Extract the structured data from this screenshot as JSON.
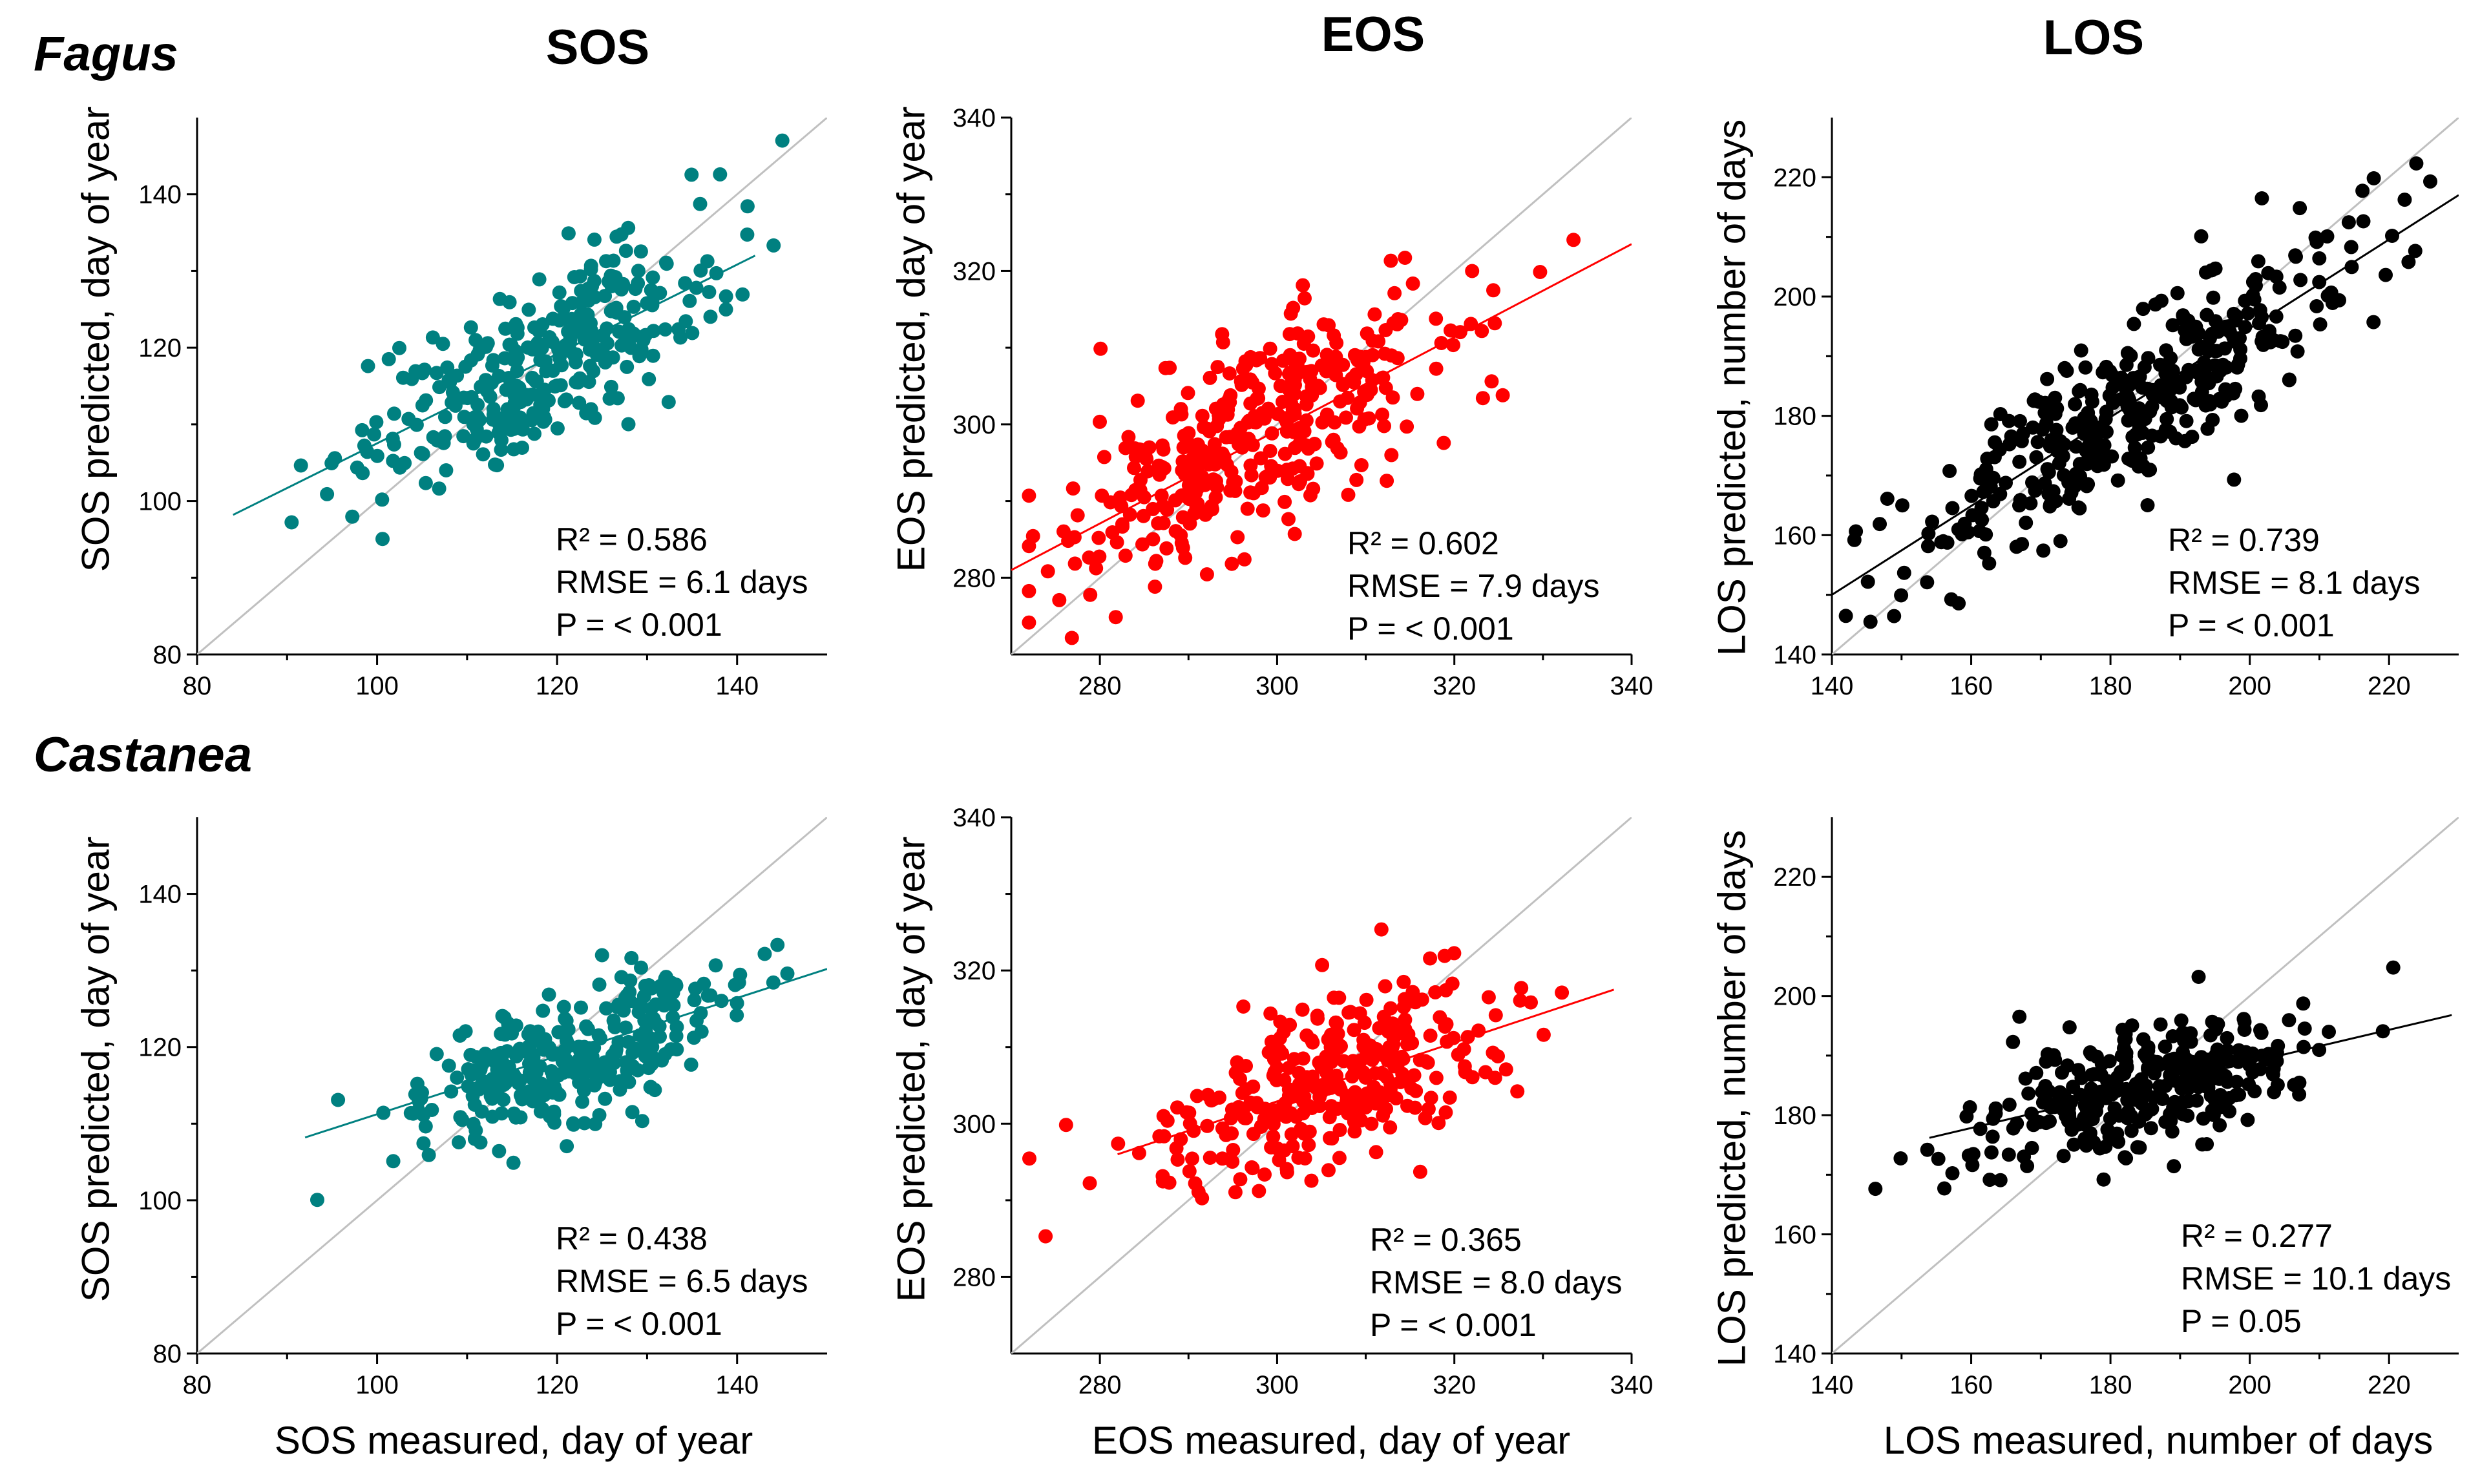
{
  "column_titles": [
    "SOS",
    "EOS",
    "LOS"
  ],
  "row_titles": [
    "Fagus",
    "Castanea"
  ],
  "colors": {
    "SOS": "#008080",
    "EOS": "#ff0000",
    "LOS": "#000000",
    "identity_line": "#c0c0c0"
  },
  "chart_data": [
    {
      "id": "fagus-sos",
      "type": "scatter",
      "species": "Fagus",
      "variable": "SOS",
      "xlabel": "",
      "ylabel": "SOS predicted, day of year",
      "xlim": [
        80,
        150
      ],
      "ylim": [
        80,
        150
      ],
      "xticks": [
        80,
        100,
        120,
        140
      ],
      "yticks": [
        80,
        100,
        120,
        140
      ],
      "identity_line": true,
      "fit_line": {
        "x": [
          84,
          142
        ],
        "y": [
          98.2,
          132
        ]
      },
      "cloud": {
        "count": 320,
        "x_mean": 118,
        "x_sd": 10,
        "slope": 0.58,
        "x_mean_fit": 118,
        "y_mean": 118,
        "resid_sd": 5.5
      },
      "stats": {
        "r2": "R² = 0.586",
        "rmse": "RMSE = 6.1 days",
        "p": "P = < 0.001"
      }
    },
    {
      "id": "fagus-eos",
      "type": "scatter",
      "species": "Fagus",
      "variable": "EOS",
      "xlabel": "",
      "ylabel": "EOS predicted, day of year",
      "xlim": [
        270,
        340
      ],
      "ylim": [
        270,
        340
      ],
      "xticks": [
        280,
        300,
        320,
        340
      ],
      "yticks": [
        280,
        300,
        320,
        340
      ],
      "identity_line": true,
      "fit_line": {
        "x": [
          270,
          340
        ],
        "y": [
          281,
          323.5
        ]
      },
      "cloud": {
        "count": 380,
        "x_mean": 298,
        "x_sd": 11,
        "slope": 0.6,
        "x_mean_fit": 298,
        "y_mean": 299,
        "resid_sd": 6.5
      },
      "stats": {
        "r2": "R² = 0.602",
        "rmse": "RMSE = 7.9 days",
        "p": "P = < 0.001"
      }
    },
    {
      "id": "fagus-los",
      "type": "scatter",
      "species": "Fagus",
      "variable": "LOS",
      "xlabel": "",
      "ylabel": "LOS predicted, number of days",
      "xlim": [
        140,
        230
      ],
      "ylim": [
        140,
        230
      ],
      "xticks": [
        140,
        160,
        180,
        200,
        220
      ],
      "yticks": [
        140,
        160,
        180,
        200,
        220
      ],
      "identity_line": true,
      "fit_line": {
        "x": [
          140,
          230
        ],
        "y": [
          150,
          217
        ]
      },
      "cloud": {
        "count": 380,
        "x_mean": 183,
        "x_sd": 16,
        "slope": 0.74,
        "x_mean_fit": 183,
        "y_mean": 182,
        "resid_sd": 7
      },
      "stats": {
        "r2": "R² = 0.739",
        "rmse": "RMSE = 8.1 days",
        "p": "P = < 0.001"
      }
    },
    {
      "id": "castanea-sos",
      "type": "scatter",
      "species": "Castanea",
      "variable": "SOS",
      "xlabel": "SOS measured, day of year",
      "ylabel": "SOS predicted, day of year",
      "xlim": [
        80,
        150
      ],
      "ylim": [
        80,
        150
      ],
      "xticks": [
        80,
        100,
        120,
        140
      ],
      "yticks": [
        80,
        100,
        120,
        140
      ],
      "identity_line": true,
      "fit_line": {
        "x": [
          92,
          150
        ],
        "y": [
          108.2,
          130.2
        ]
      },
      "cloud": {
        "count": 300,
        "x_mean": 122,
        "x_sd": 9,
        "slope": 0.38,
        "x_mean_fit": 122,
        "y_mean": 119.4,
        "resid_sd": 4.5
      },
      "stats": {
        "r2": "R² = 0.438",
        "rmse": "RMSE = 6.5 days",
        "p": "P = < 0.001"
      }
    },
    {
      "id": "castanea-eos",
      "type": "scatter",
      "species": "Castanea",
      "variable": "EOS",
      "xlabel": "EOS measured, day of year",
      "ylabel": "EOS predicted, day of year",
      "xlim": [
        270,
        340
      ],
      "ylim": [
        270,
        340
      ],
      "xticks": [
        280,
        300,
        320,
        340
      ],
      "yticks": [
        280,
        300,
        320,
        340
      ],
      "identity_line": true,
      "fit_line": {
        "x": [
          282,
          338
        ],
        "y": [
          296,
          317.5
        ]
      },
      "cloud": {
        "count": 320,
        "x_mean": 306,
        "x_sd": 10,
        "slope": 0.38,
        "x_mean_fit": 306,
        "y_mean": 305.2,
        "resid_sd": 5.5
      },
      "stats": {
        "r2": "R² = 0.365",
        "rmse": "RMSE = 8.0 days",
        "p": "P = < 0.001"
      }
    },
    {
      "id": "castanea-los",
      "type": "scatter",
      "species": "Castanea",
      "variable": "LOS",
      "xlabel": "LOS measured, number of days",
      "ylabel": "LOS predicted, number of days",
      "xlim": [
        140,
        230
      ],
      "ylim": [
        140,
        230
      ],
      "xticks": [
        140,
        160,
        180,
        200,
        220
      ],
      "yticks": [
        140,
        160,
        180,
        200,
        220
      ],
      "identity_line": true,
      "fit_line": {
        "x": [
          154,
          229
        ],
        "y": [
          176.2,
          196.8
        ]
      },
      "cloud": {
        "count": 320,
        "x_mean": 185,
        "x_sd": 12,
        "slope": 0.27,
        "x_mean_fit": 185,
        "y_mean": 184.4,
        "resid_sd": 5
      },
      "stats": {
        "r2": "R² = 0.277",
        "rmse": "RMSE = 10.1 days",
        "p": "P = 0.05"
      }
    }
  ]
}
